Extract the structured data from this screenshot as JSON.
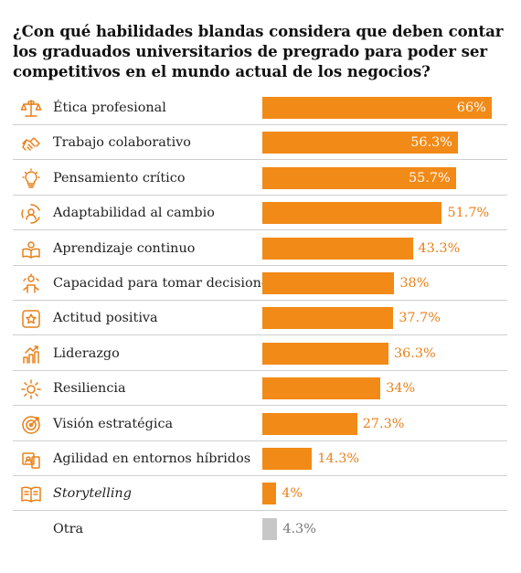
{
  "title": "¿Con qué habilidades blandas considera que deben contar los graduados universitarios de pregrado para poder ser competitivos en el mundo actual de los negocios?",
  "colors": {
    "bar": "#f28a17",
    "bar_other": "#c7c7c7",
    "icon": "#e8801a",
    "value_outside": "#e8801a",
    "value_other": "#777777"
  },
  "chart_data": {
    "type": "bar",
    "orientation": "horizontal",
    "title": "¿Con qué habilidades blandas considera que deben contar los graduados universitarios de pregrado para poder ser competitivos en el mundo actual de los negocios?",
    "xlim": [
      0,
      100
    ],
    "grid": false,
    "categories": [
      "Ética profesional",
      "Trabajo colaborativo",
      "Pensamiento crítico",
      "Adaptabilidad al cambio",
      "Aprendizaje continuo",
      "Capacidad para tomar decisiones",
      "Actitud positiva",
      "Liderazgo",
      "Resiliencia",
      "Visión estratégica",
      "Agilidad en entornos híbridos",
      "Storytelling",
      "Otra"
    ],
    "values": [
      66,
      56.3,
      55.7,
      51.7,
      43.3,
      38,
      37.7,
      36.3,
      34,
      27.3,
      14.3,
      4,
      4.3
    ],
    "value_labels": [
      "66%",
      "56.3%",
      "55.7%",
      "51.7%",
      "43.3%",
      "38%",
      "37.7%",
      "36.3%",
      "34%",
      "27.3%",
      "14.3%",
      "4%",
      "4.3%"
    ],
    "italic_categories": [
      "Storytelling"
    ],
    "icons": [
      "scales-icon",
      "handshake-icon",
      "lightbulb-icon",
      "adaptability-icon",
      "book-reader-icon",
      "decision-person-icon",
      "star-badge-icon",
      "leadership-icon",
      "resilience-gear-icon",
      "target-icon",
      "hybrid-devices-icon",
      "open-book-icon",
      ""
    ]
  }
}
